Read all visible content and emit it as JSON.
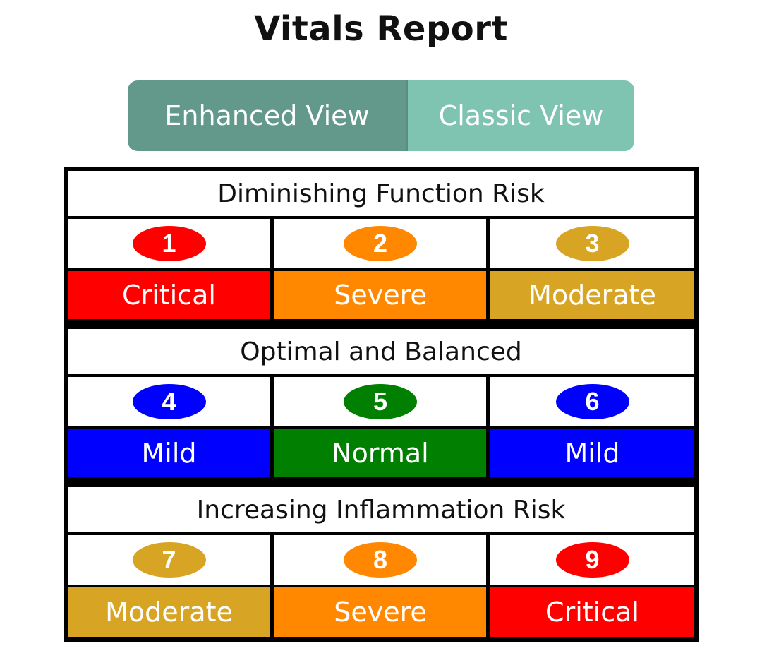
{
  "report": {
    "title": "Vitals Report"
  },
  "view_toggle": {
    "enhanced_label": "Enhanced View",
    "classic_label": "Classic View",
    "selected": "Enhanced View"
  },
  "colors": {
    "critical": "#ff0000",
    "severe": "#ff8800",
    "moderate": "#d8a423",
    "mild": "#0000ff",
    "normal": "#007f00",
    "toggle_active": "#63998a",
    "toggle_inactive": "#7ec4b1"
  },
  "sections": [
    {
      "header": "Diminishing Function Risk",
      "items": [
        {
          "number": "1",
          "label": "Critical",
          "color": "#ff0000"
        },
        {
          "number": "2",
          "label": "Severe",
          "color": "#ff8800"
        },
        {
          "number": "3",
          "label": "Moderate",
          "color": "#d8a423"
        }
      ]
    },
    {
      "header": "Optimal and Balanced",
      "items": [
        {
          "number": "4",
          "label": "Mild",
          "color": "#0000ff"
        },
        {
          "number": "5",
          "label": "Normal",
          "color": "#007f00"
        },
        {
          "number": "6",
          "label": "Mild",
          "color": "#0000ff"
        }
      ]
    },
    {
      "header": "Increasing Inflammation Risk",
      "items": [
        {
          "number": "7",
          "label": "Moderate",
          "color": "#d8a423"
        },
        {
          "number": "8",
          "label": "Severe",
          "color": "#ff8800"
        },
        {
          "number": "9",
          "label": "Critical",
          "color": "#ff0000"
        }
      ]
    }
  ]
}
